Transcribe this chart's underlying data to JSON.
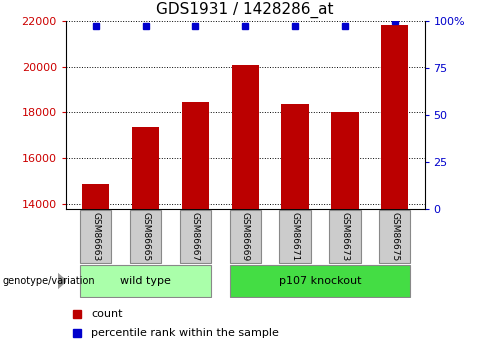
{
  "title": "GDS1931 / 1428286_at",
  "samples": [
    "GSM86663",
    "GSM86665",
    "GSM86667",
    "GSM86669",
    "GSM86671",
    "GSM86673",
    "GSM86675"
  ],
  "counts": [
    14900,
    17350,
    18450,
    20050,
    18350,
    18000,
    21800
  ],
  "percentile_ranks": [
    97,
    97,
    97,
    97,
    97,
    97,
    100
  ],
  "ylim_left": [
    13800,
    22000
  ],
  "ylim_right": [
    0,
    100
  ],
  "yticks_left": [
    14000,
    16000,
    18000,
    20000,
    22000
  ],
  "yticks_right": [
    0,
    25,
    50,
    75,
    100
  ],
  "bar_color": "#BB0000",
  "dot_color": "#0000CC",
  "groups": [
    {
      "label": "wild type",
      "indices": [
        0,
        1,
        2
      ],
      "color": "#AAFFAA"
    },
    {
      "label": "p107 knockout",
      "indices": [
        3,
        4,
        5,
        6
      ],
      "color": "#44DD44"
    }
  ],
  "group_label": "genotype/variation",
  "legend_count_label": "count",
  "legend_pct_label": "percentile rank within the sample",
  "title_fontsize": 11,
  "tick_label_fontsize": 8,
  "bar_width": 0.55,
  "background_color": "#FFFFFF",
  "sample_box_color": "#CCCCCC",
  "left_axis_color": "#CC0000",
  "right_axis_color": "#0000CC"
}
